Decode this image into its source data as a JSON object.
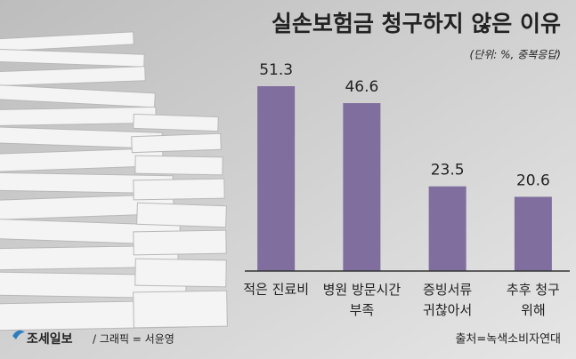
{
  "chart_data": {
    "type": "bar",
    "title": "실손보험금 청구하지 않은 이유",
    "subtitle": "(단위: %, 중복응답)",
    "categories": [
      "적은 진료비",
      "병원 방문시간\n부족",
      "증빙서류\n귀찮아서",
      "추후 청구\n위해"
    ],
    "values": [
      51.3,
      46.6,
      23.5,
      20.6
    ],
    "color": "#7f6e9e",
    "ylim": [
      0,
      55
    ],
    "publisher": "조세일보",
    "credit": "/ 그래픽 = 서윤영",
    "source": "출처=녹색소비자연대"
  }
}
